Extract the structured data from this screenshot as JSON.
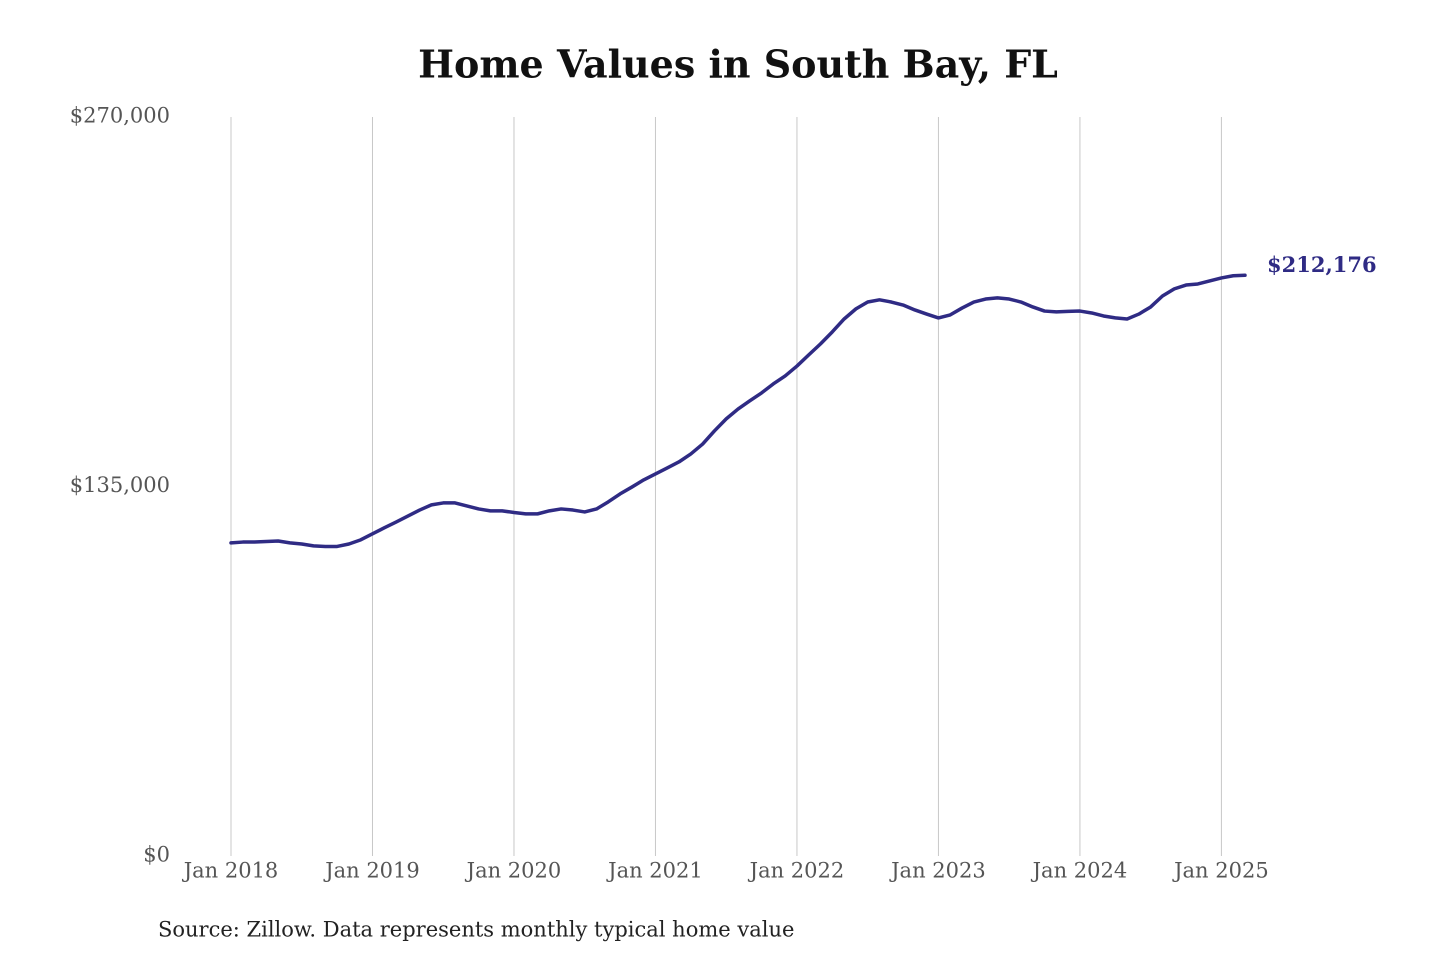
{
  "chart_data": {
    "type": "line",
    "title": "Home Values in South Bay, FL",
    "source": "Source: Zillow. Data represents monthly typical home value",
    "x": [
      "2018-01",
      "2018-02",
      "2018-03",
      "2018-04",
      "2018-05",
      "2018-06",
      "2018-07",
      "2018-08",
      "2018-09",
      "2018-10",
      "2018-11",
      "2018-12",
      "2019-01",
      "2019-02",
      "2019-03",
      "2019-04",
      "2019-05",
      "2019-06",
      "2019-07",
      "2019-08",
      "2019-09",
      "2019-10",
      "2019-11",
      "2019-12",
      "2020-01",
      "2020-02",
      "2020-03",
      "2020-04",
      "2020-05",
      "2020-06",
      "2020-07",
      "2020-08",
      "2020-09",
      "2020-10",
      "2020-11",
      "2020-12",
      "2021-01",
      "2021-02",
      "2021-03",
      "2021-04",
      "2021-05",
      "2021-06",
      "2021-07",
      "2021-08",
      "2021-09",
      "2021-10",
      "2021-11",
      "2021-12",
      "2022-01",
      "2022-02",
      "2022-03",
      "2022-04",
      "2022-05",
      "2022-06",
      "2022-07",
      "2022-08",
      "2022-09",
      "2022-10",
      "2022-11",
      "2022-12",
      "2023-01",
      "2023-02",
      "2023-03",
      "2023-04",
      "2023-05",
      "2023-06",
      "2023-07",
      "2023-08",
      "2023-09",
      "2023-10",
      "2023-11",
      "2023-12",
      "2024-01",
      "2024-02",
      "2024-03",
      "2024-04",
      "2024-05",
      "2024-06",
      "2024-07",
      "2024-08",
      "2024-09",
      "2024-10",
      "2024-11",
      "2024-12",
      "2025-01",
      "2025-02",
      "2025-03"
    ],
    "series": [
      {
        "color": "#2f2b84",
        "values": [
          114400,
          114700,
          114700,
          114900,
          115100,
          114400,
          114000,
          113300,
          113100,
          113100,
          114000,
          115500,
          117700,
          119900,
          122000,
          124200,
          126400,
          128300,
          129000,
          129000,
          127900,
          126800,
          126100,
          126100,
          125500,
          125000,
          125000,
          126100,
          126800,
          126400,
          125700,
          126800,
          129400,
          132300,
          134800,
          137400,
          139600,
          141800,
          144000,
          146900,
          150500,
          155300,
          159700,
          163300,
          166300,
          169200,
          172500,
          175400,
          179000,
          183100,
          187100,
          191500,
          196200,
          199900,
          202400,
          203200,
          202400,
          201300,
          199500,
          198000,
          196600,
          197700,
          200200,
          202400,
          203500,
          203900,
          203500,
          202400,
          200600,
          199100,
          198800,
          199000,
          199100,
          198400,
          197300,
          196600,
          196200,
          198000,
          200600,
          204600,
          207200,
          208600,
          209000,
          210100,
          211200,
          212000,
          212176
        ],
        "value_labels": [
          null,
          null,
          null,
          null,
          null,
          null,
          null,
          null,
          null,
          null,
          null,
          null,
          null,
          null,
          null,
          null,
          null,
          null,
          null,
          null,
          null,
          null,
          null,
          null,
          null,
          null,
          null,
          null,
          null,
          null,
          null,
          null,
          null,
          null,
          null,
          null,
          null,
          null,
          null,
          null,
          null,
          null,
          null,
          null,
          null,
          null,
          null,
          null,
          null,
          null,
          null,
          null,
          null,
          null,
          null,
          null,
          null,
          null,
          null,
          null,
          null,
          null,
          null,
          null,
          null,
          null,
          null,
          null,
          null,
          null,
          null,
          null,
          null,
          null,
          null,
          null,
          null,
          null,
          null,
          null,
          null,
          null,
          null,
          null,
          null,
          null,
          "$212,176"
        ]
      }
    ],
    "xlim": [
      "2018-01",
      "2025-03"
    ],
    "xticks": [
      {
        "value": "2018-01",
        "label": "Jan 2018"
      },
      {
        "value": "2019-01",
        "label": "Jan 2019"
      },
      {
        "value": "2020-01",
        "label": "Jan 2020"
      },
      {
        "value": "2021-01",
        "label": "Jan 2021"
      },
      {
        "value": "2022-01",
        "label": "Jan 2022"
      },
      {
        "value": "2023-01",
        "label": "Jan 2023"
      },
      {
        "value": "2024-01",
        "label": "Jan 2024"
      },
      {
        "value": "2025-01",
        "label": "Jan 2025"
      }
    ],
    "ylim": [
      0,
      270000
    ],
    "yticks": [
      {
        "value": 0,
        "label": "$0"
      },
      {
        "value": 135000,
        "label": "$135,000"
      },
      {
        "value": 270000,
        "label": "$270,000"
      }
    ],
    "grid": "x"
  }
}
